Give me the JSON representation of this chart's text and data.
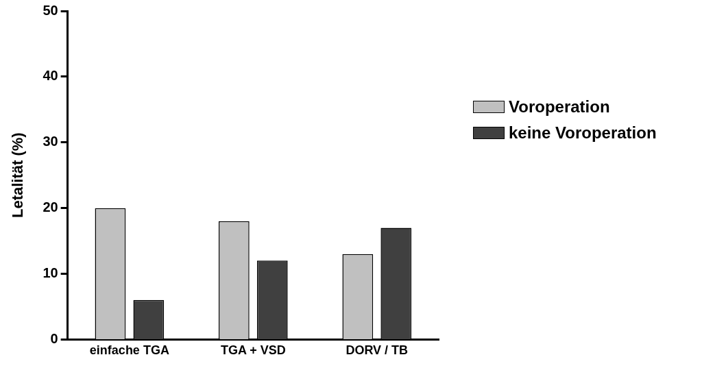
{
  "chart_data": {
    "type": "bar",
    "ylabel": "Letalität (%)",
    "categories": [
      "einfache TGA",
      "TGA + VSD",
      "DORV / TB"
    ],
    "series": [
      {
        "name": "Voroperation",
        "color": "#c0c0c0",
        "values": [
          20,
          18,
          13
        ]
      },
      {
        "name": "keine Voroperation",
        "color": "#404040",
        "values": [
          6,
          12,
          17
        ]
      }
    ],
    "ylim": [
      0,
      50
    ],
    "yticks": [
      0,
      10,
      20,
      30,
      40,
      50
    ],
    "grid": false,
    "legend": "right"
  }
}
